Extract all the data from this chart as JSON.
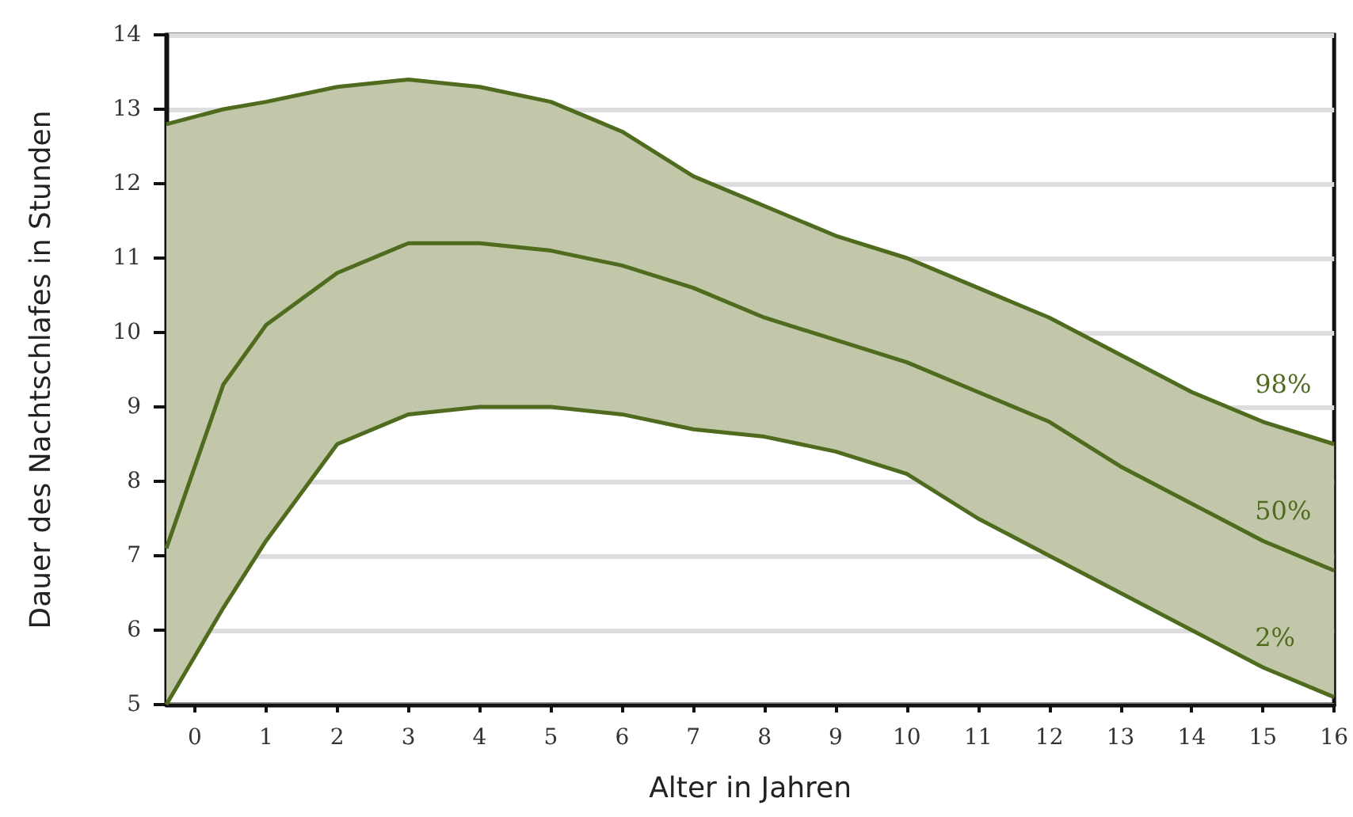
{
  "chart_data": {
    "type": "line",
    "xlabel": "Alter in Jahren",
    "ylabel": "Dauer des Nachtschlafes in Stunden",
    "x": [
      -0.4,
      0.4,
      1,
      2,
      3,
      4,
      5,
      6,
      7,
      8,
      9,
      10,
      11,
      12,
      13,
      14,
      15,
      16
    ],
    "series": [
      {
        "name": "98%",
        "color": "#4e6b1e",
        "values": [
          12.8,
          13.0,
          13.1,
          13.3,
          13.4,
          13.3,
          13.1,
          12.7,
          12.1,
          11.7,
          11.3,
          11.0,
          10.6,
          10.2,
          9.7,
          9.2,
          8.8,
          8.5
        ]
      },
      {
        "name": "50%",
        "color": "#4e6b1e",
        "values": [
          7.1,
          9.3,
          10.1,
          10.8,
          11.2,
          11.2,
          11.1,
          10.9,
          10.6,
          10.2,
          9.9,
          9.6,
          9.2,
          8.8,
          8.2,
          7.7,
          7.2,
          6.8
        ],
        "lower": [
          5.0,
          6.3,
          7.2,
          8.5,
          8.9,
          9.0,
          9.0,
          8.9,
          8.7,
          8.6,
          8.4,
          8.1,
          7.5,
          7.0,
          6.5,
          6.0,
          5.5,
          5.1
        ],
        "upper": [
          12.8,
          13.0,
          13.1,
          13.3,
          13.4,
          13.3,
          13.1,
          12.7,
          12.1,
          11.7,
          11.3,
          11.0,
          10.6,
          10.2,
          9.7,
          9.2,
          8.8,
          8.5
        ]
      },
      {
        "name": "2%",
        "color": "#4e6b1e",
        "values": [
          5.0,
          6.3,
          7.2,
          8.5,
          8.9,
          9.0,
          9.0,
          8.9,
          8.7,
          8.6,
          8.4,
          8.1,
          7.5,
          7.0,
          6.5,
          6.0,
          5.5,
          5.1
        ]
      }
    ],
    "xlim": [
      -0.4,
      16
    ],
    "xticks": [
      0,
      1,
      2,
      3,
      4,
      5,
      6,
      7,
      8,
      9,
      10,
      11,
      12,
      13,
      14,
      15,
      16
    ],
    "ylim": [
      5,
      14
    ],
    "yticks": [
      5,
      6,
      7,
      8,
      9,
      10,
      11,
      12,
      13,
      14
    ],
    "grid": "y",
    "marker": "none",
    "line_style": "solid",
    "legend": false
  }
}
